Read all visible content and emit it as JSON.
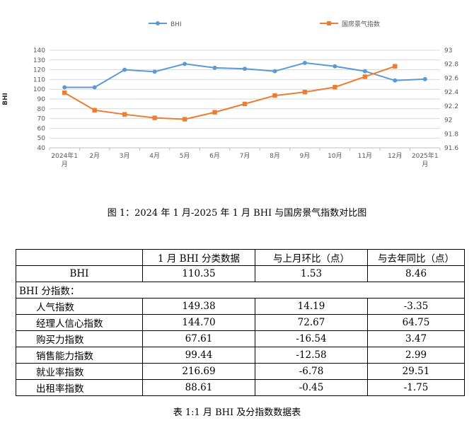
{
  "chart_data": {
    "type": "line",
    "categories": [
      "2024年1月",
      "2月",
      "3月",
      "4月",
      "5月",
      "6月",
      "7月",
      "8月",
      "9月",
      "10月",
      "11月",
      "12月",
      "2025年1月"
    ],
    "y_ticks": [
      "40",
      "50",
      "60",
      "70",
      "80",
      "90",
      "100",
      "110",
      "120",
      "130",
      "140"
    ],
    "y2_ticks": [
      "91.6",
      "91.8",
      "92",
      "92.2",
      "92.4",
      "92.6",
      "92.8",
      "93"
    ],
    "ylabel": "BHI",
    "ylim": [
      40,
      140
    ],
    "y2lim": [
      91.6,
      93
    ],
    "series": [
      {
        "name": "BHI",
        "axis": "left",
        "color": "#5b9bd5",
        "values": [
          102,
          102,
          120,
          118,
          126,
          122,
          121,
          118.5,
          127,
          123.5,
          118.5,
          109,
          110.35
        ]
      },
      {
        "name": "国房景气指数",
        "axis": "right",
        "color": "#ed7d31",
        "values": [
          92.39,
          92.14,
          92.08,
          92.03,
          92.01,
          92.11,
          92.23,
          92.35,
          92.4,
          92.47,
          92.62,
          92.77,
          null
        ]
      }
    ],
    "legend": "top",
    "grid": "horizontal"
  },
  "figure_caption": "图 1：2024 年 1 月-2025 年 1 月 BHI 与国房景气指数对比图",
  "table": {
    "headers": [
      "",
      "1 月 BHI 分类数据",
      "与上月环比（点）",
      "与去年同比（点）"
    ],
    "bhi_row": [
      "BHI",
      "110.35",
      "1.53",
      "8.46"
    ],
    "section_label": "BHI 分指数：",
    "rows": [
      [
        "人气指数",
        "149.38",
        "14.19",
        "-3.35"
      ],
      [
        "经理人信心指数",
        "144.70",
        "72.67",
        "64.75"
      ],
      [
        "购买力指数",
        "67.61",
        "-16.54",
        "3.47"
      ],
      [
        "销售能力指数",
        "99.44",
        "-12.58",
        "2.99"
      ],
      [
        "就业率指数",
        "216.69",
        "-6.78",
        "29.51"
      ],
      [
        "出租率指数",
        "88.61",
        "-0.45",
        "-1.75"
      ]
    ]
  },
  "table_caption": "表 1:1 月 BHI 及分指数数据表"
}
